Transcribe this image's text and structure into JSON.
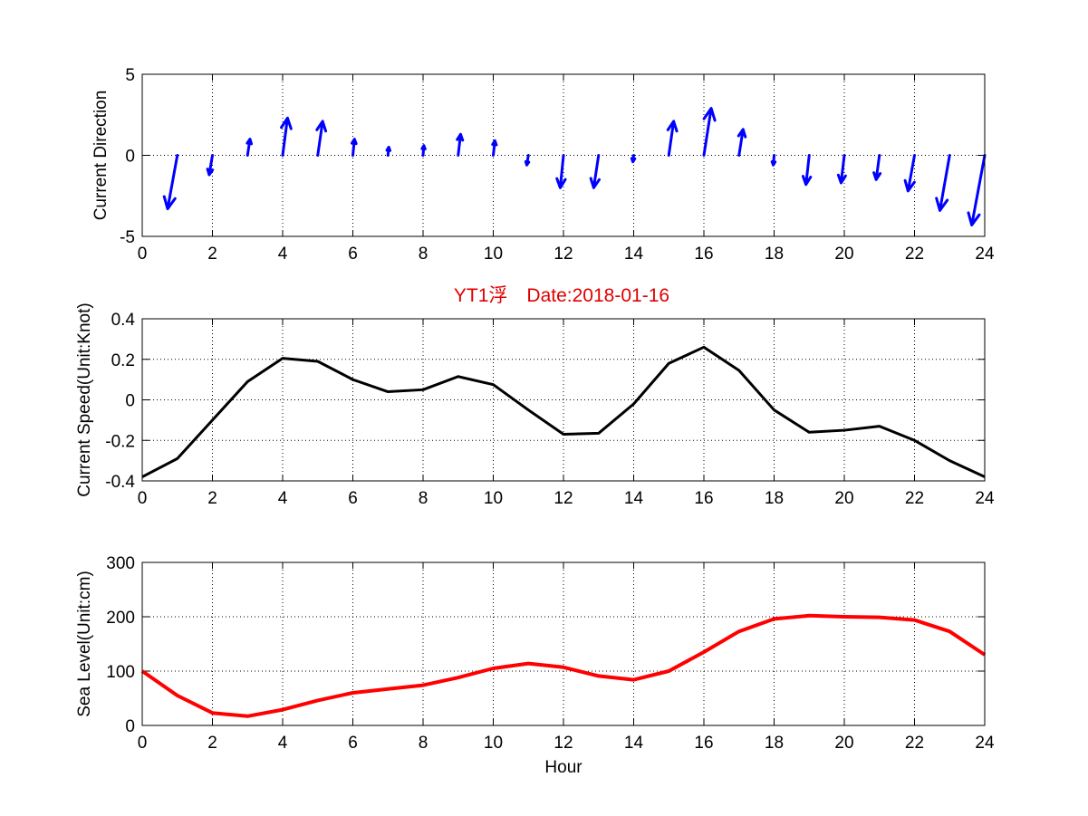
{
  "figure": {
    "title": "YT1浮　Date:2018-01-16",
    "title_color": "#e00000",
    "xlabel": "Hour"
  },
  "chart_data": [
    {
      "type": "quiver",
      "ylabel": "Current Direction",
      "xlim": [
        0,
        24
      ],
      "ylim": [
        -5,
        5
      ],
      "xticks": [
        "0",
        "2",
        "4",
        "6",
        "8",
        "10",
        "12",
        "14",
        "16",
        "18",
        "20",
        "22",
        "24"
      ],
      "yticks": [
        "-5",
        "0",
        "5"
      ],
      "grid": true,
      "color": "#0000ff",
      "x": [
        1,
        2,
        3,
        4,
        5,
        6,
        7,
        8,
        9,
        10,
        11,
        12,
        13,
        14,
        15,
        16,
        17,
        18,
        19,
        20,
        21,
        22,
        23,
        24
      ],
      "u": [
        -0.6,
        -0.2,
        0.15,
        0.3,
        0.3,
        0.1,
        0.05,
        0.05,
        0.15,
        0.1,
        -0.1,
        -0.2,
        -0.3,
        -0.05,
        0.3,
        0.45,
        0.25,
        -0.05,
        -0.2,
        -0.2,
        -0.2,
        -0.4,
        -0.6,
        -0.8
      ],
      "v": [
        -3.3,
        -1.2,
        1.0,
        2.3,
        2.1,
        1.0,
        0.5,
        0.6,
        1.3,
        0.9,
        -0.6,
        -2.0,
        -2.0,
        -0.4,
        2.1,
        2.9,
        1.6,
        -0.6,
        -1.8,
        -1.7,
        -1.5,
        -2.2,
        -3.4,
        -4.3
      ]
    },
    {
      "type": "line",
      "ylabel": "Current Speed(Unit:Knot)",
      "xlim": [
        0,
        24
      ],
      "ylim": [
        -0.4,
        0.4
      ],
      "xticks": [
        "0",
        "2",
        "4",
        "6",
        "8",
        "10",
        "12",
        "14",
        "16",
        "18",
        "20",
        "22",
        "24"
      ],
      "yticks": [
        "-0.4",
        "-0.2",
        "0",
        "0.2",
        "0.4"
      ],
      "grid": true,
      "color": "#000000",
      "x": [
        0,
        1,
        2,
        3,
        4,
        5,
        6,
        7,
        8,
        9,
        10,
        11,
        12,
        13,
        14,
        15,
        16,
        17,
        18,
        19,
        20,
        21,
        22,
        23,
        24
      ],
      "y": [
        -0.38,
        -0.29,
        -0.1,
        0.09,
        0.205,
        0.19,
        0.1,
        0.04,
        0.05,
        0.115,
        0.075,
        -0.05,
        -0.17,
        -0.165,
        -0.02,
        0.18,
        0.26,
        0.145,
        -0.05,
        -0.16,
        -0.15,
        -0.13,
        -0.2,
        -0.3,
        -0.38
      ]
    },
    {
      "type": "line",
      "ylabel": "Sea Level(Unit:cm)",
      "xlabel": "Hour",
      "xlim": [
        0,
        24
      ],
      "ylim": [
        0,
        300
      ],
      "xticks": [
        "0",
        "2",
        "4",
        "6",
        "8",
        "10",
        "12",
        "14",
        "16",
        "18",
        "20",
        "22",
        "24"
      ],
      "yticks": [
        "0",
        "100",
        "200",
        "300"
      ],
      "grid": true,
      "color": "#ff0000",
      "x": [
        0,
        1,
        2,
        3,
        4,
        5,
        6,
        7,
        8,
        9,
        10,
        11,
        12,
        13,
        14,
        15,
        16,
        17,
        18,
        19,
        20,
        21,
        22,
        23,
        24
      ],
      "y": [
        100,
        55,
        23,
        17,
        29,
        46,
        60,
        67,
        74,
        88,
        105,
        114,
        107,
        91,
        84,
        100,
        135,
        173,
        196,
        202,
        200,
        199,
        194,
        173,
        130
      ]
    }
  ]
}
